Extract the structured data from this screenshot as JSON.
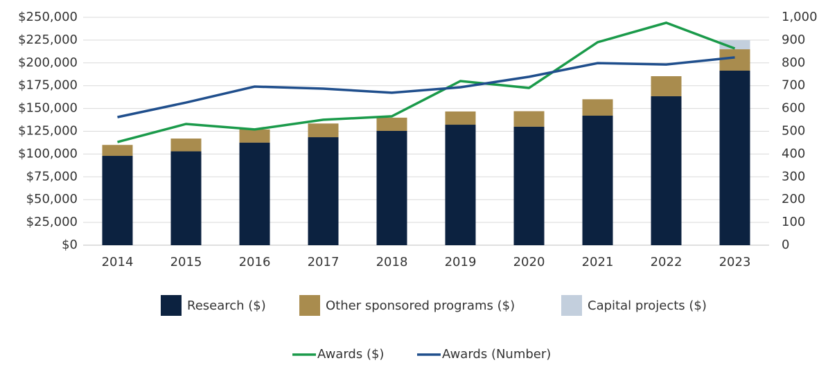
{
  "chart_data": {
    "type": "bar",
    "categories": [
      "2014",
      "2015",
      "2016",
      "2017",
      "2018",
      "2019",
      "2020",
      "2021",
      "2022",
      "2023"
    ],
    "stacked": true,
    "series": [
      {
        "name": "Research ($)",
        "type": "bar",
        "color": "#0c2240",
        "values": [
          98000,
          103000,
          112500,
          118500,
          125400,
          132200,
          130000,
          142100,
          163400,
          191500
        ]
      },
      {
        "name": "Other sponsored programs ($)",
        "type": "bar",
        "color": "#a98c4e",
        "values": [
          12000,
          14000,
          14500,
          15000,
          14500,
          14500,
          17000,
          18000,
          22000,
          23500
        ]
      },
      {
        "name": "Capital projects ($)",
        "type": "bar",
        "color": "#c3cfdd",
        "values": [
          0,
          0,
          0,
          0,
          0,
          0,
          0,
          0,
          0,
          10000
        ]
      },
      {
        "name": "Awards ($)",
        "type": "line",
        "color": "#1a9a4a",
        "values": [
          113200,
          133000,
          127000,
          137600,
          141400,
          180100,
          172500,
          222700,
          244000,
          215800
        ]
      },
      {
        "name": "Awards (Number)",
        "type": "line",
        "axis": "y2",
        "color": "#1f4e8c",
        "values": [
          562,
          626,
          696,
          687,
          669,
          693,
          739,
          799,
          793,
          824
        ]
      }
    ],
    "ylim": [
      0,
      250000
    ],
    "yticks": [
      {
        "value": 0,
        "label": "$0"
      },
      {
        "value": 25000,
        "label": "$25,000"
      },
      {
        "value": 50000,
        "label": "$50,000"
      },
      {
        "value": 75000,
        "label": "$75,000"
      },
      {
        "value": 100000,
        "label": "$100,000"
      },
      {
        "value": 125000,
        "label": "$125,000"
      },
      {
        "value": 150000,
        "label": "$150,000"
      },
      {
        "value": 175000,
        "label": "$175,000"
      },
      {
        "value": 200000,
        "label": "$200,000"
      },
      {
        "value": 225000,
        "label": "$225,000"
      },
      {
        "value": 250000,
        "label": "$250,000"
      }
    ],
    "y2lim": [
      0,
      1000
    ],
    "y2ticks": [
      0,
      100,
      200,
      300,
      400,
      500,
      600,
      700,
      800,
      900,
      {
        "value": 1000,
        "label": "1,000"
      }
    ],
    "grid": true
  }
}
